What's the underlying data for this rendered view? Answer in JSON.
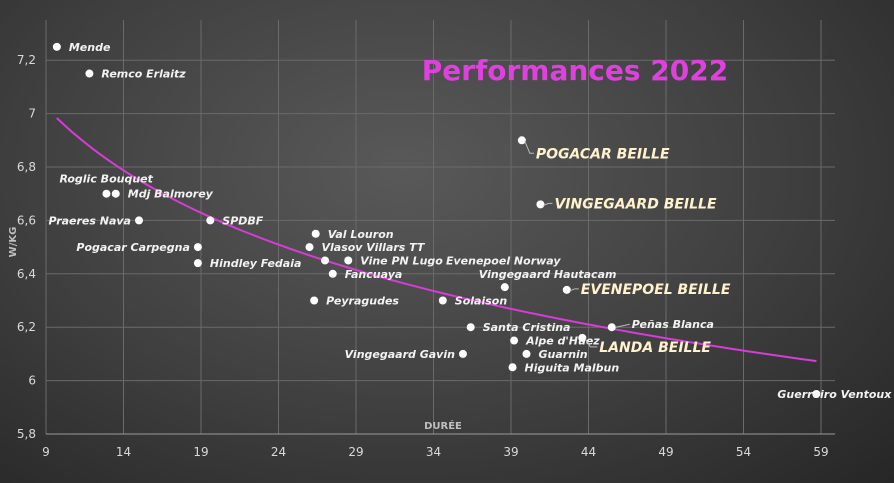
{
  "chart_data": {
    "type": "scatter",
    "title": "Performances 2022",
    "xlabel": "DURÉE",
    "ylabel": "W/KG",
    "xlim": [
      9,
      59
    ],
    "ylim": [
      5.8,
      7.3
    ],
    "xticks": [
      "9",
      "14",
      "19",
      "24",
      "29",
      "34",
      "39",
      "44",
      "49",
      "54",
      "59"
    ],
    "yticks": [
      "5,8",
      "6",
      "6,2",
      "6,4",
      "6,6",
      "6,8",
      "7",
      "7,2"
    ],
    "grid": true,
    "title_color": "#e040e0",
    "trend_color": "#d63cd6",
    "trendline": {
      "type": "power",
      "a": 8.33,
      "b": -0.0776
    },
    "points": [
      {
        "label": "Mende",
        "x": 9.7,
        "y": 7.25
      },
      {
        "label": "Remco Erlaitz",
        "x": 11.8,
        "y": 7.15
      },
      {
        "label": "Roglic Bouquet",
        "x": 12.9,
        "y": 6.7
      },
      {
        "label": "Mdj Balmorey",
        "x": 13.5,
        "y": 6.7
      },
      {
        "label": "Praeres Nava",
        "x": 15.0,
        "y": 6.6
      },
      {
        "label": "SPDBF",
        "x": 19.6,
        "y": 6.6
      },
      {
        "label": "Pogacar  Carpegna",
        "x": 18.8,
        "y": 6.5
      },
      {
        "label": "Hindley Fedaia",
        "x": 18.8,
        "y": 6.44
      },
      {
        "label": "Val Louron",
        "x": 26.4,
        "y": 6.55
      },
      {
        "label": "Vlasov Villars TT",
        "x": 26.0,
        "y": 6.5
      },
      {
        "label": "Evenepoel Norway",
        "x": 27.0,
        "y": 6.45
      },
      {
        "label": "Vine PN Lugo",
        "x": 28.5,
        "y": 6.45
      },
      {
        "label": "Fancuaya",
        "x": 27.5,
        "y": 6.4
      },
      {
        "label": "Peyragudes",
        "x": 26.3,
        "y": 6.3
      },
      {
        "label": "Solaison",
        "x": 34.6,
        "y": 6.3
      },
      {
        "label": "Vingegaard  Hautacam",
        "x": 38.6,
        "y": 6.35,
        "pos": "above"
      },
      {
        "label": "EVENEPOEL BEILLE",
        "x": 42.6,
        "y": 6.34,
        "big": true
      },
      {
        "label": "POGACAR BEILLE",
        "x": 39.7,
        "y": 6.9,
        "big": true
      },
      {
        "label": "VINGEGAARD BEILLE",
        "x": 40.9,
        "y": 6.66,
        "big": true
      },
      {
        "label": "Santa Cristina",
        "x": 36.4,
        "y": 6.2
      },
      {
        "label": "Peñas Blanca",
        "x": 45.5,
        "y": 6.2,
        "leader": true
      },
      {
        "label": "Alpe d'Huez",
        "x": 39.2,
        "y": 6.15
      },
      {
        "label": "LANDA BEILLE",
        "x": 43.6,
        "y": 6.16,
        "big": true
      },
      {
        "label": "Vingegaard  Gavin",
        "x": 35.9,
        "y": 6.1
      },
      {
        "label": "Guarnin",
        "x": 40.0,
        "y": 6.1
      },
      {
        "label": "Higuita Malbun",
        "x": 39.1,
        "y": 6.05
      },
      {
        "label": "Guerreiro Ventoux",
        "x": 58.7,
        "y": 5.95,
        "pos": "center"
      }
    ]
  }
}
